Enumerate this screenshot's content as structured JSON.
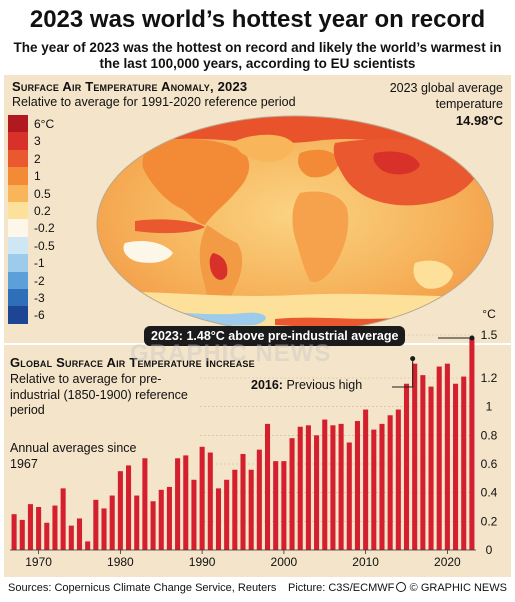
{
  "header": {
    "title": "2023 was world’s hottest year on record",
    "subtitle": "The year of 2023 was the hottest on record and likely the world’s warmest in the last 100,000 years, according to EU scientists"
  },
  "map": {
    "title": "Surface Air Temperature Anomaly, 2023",
    "subtitle": "Relative to average for 1991-2020 reference period",
    "global_avg_label": "2023 global average temperature",
    "global_avg_value": "14.98°C",
    "legend": [
      {
        "label": "6°C",
        "color": "#b0191f"
      },
      {
        "label": "3",
        "color": "#d8312a"
      },
      {
        "label": "2",
        "color": "#e9582e"
      },
      {
        "label": "1",
        "color": "#f28a36"
      },
      {
        "label": "0.5",
        "color": "#f8b55a"
      },
      {
        "label": "0.2",
        "color": "#fde19a"
      },
      {
        "label": "-0.2",
        "color": "#fdf7ea"
      },
      {
        "label": "-0.5",
        "color": "#cfe6f5"
      },
      {
        "label": "-1",
        "color": "#9ccbeb"
      },
      {
        "label": "-2",
        "color": "#5d9fd8"
      },
      {
        "label": "-3",
        "color": "#2f6fba"
      },
      {
        "label": "-6",
        "color": "#1c4594"
      }
    ]
  },
  "chart_data": {
    "type": "bar",
    "title": "Global Surface Air Temperature Increase",
    "subtitle": "Relative to average for pre-industrial (1850-1900) reference period",
    "note": "Annual averages since 1967",
    "unit": "°C",
    "ylim": [
      0,
      1.5
    ],
    "yticks": [
      0,
      0.2,
      0.4,
      0.6,
      0.8,
      1.0,
      1.2,
      1.5
    ],
    "ytick_labels": [
      "0",
      "0.2",
      "0.4",
      "0.6",
      "0.8",
      "1",
      "1.2",
      "1.5"
    ],
    "xticks": [
      1970,
      1980,
      1990,
      2000,
      2010,
      2020
    ],
    "years": [
      1967,
      1968,
      1969,
      1970,
      1971,
      1972,
      1973,
      1974,
      1975,
      1976,
      1977,
      1978,
      1979,
      1980,
      1981,
      1982,
      1983,
      1984,
      1985,
      1986,
      1987,
      1988,
      1989,
      1990,
      1991,
      1992,
      1993,
      1994,
      1995,
      1996,
      1997,
      1998,
      1999,
      2000,
      2001,
      2002,
      2003,
      2004,
      2005,
      2006,
      2007,
      2008,
      2009,
      2010,
      2011,
      2012,
      2013,
      2014,
      2015,
      2016,
      2017,
      2018,
      2019,
      2020,
      2021,
      2022,
      2023
    ],
    "values": [
      0.25,
      0.21,
      0.32,
      0.3,
      0.19,
      0.31,
      0.43,
      0.17,
      0.22,
      0.06,
      0.35,
      0.29,
      0.38,
      0.55,
      0.59,
      0.38,
      0.64,
      0.34,
      0.42,
      0.44,
      0.64,
      0.66,
      0.49,
      0.72,
      0.68,
      0.43,
      0.49,
      0.56,
      0.67,
      0.56,
      0.7,
      0.88,
      0.62,
      0.62,
      0.78,
      0.86,
      0.87,
      0.8,
      0.91,
      0.87,
      0.88,
      0.75,
      0.9,
      0.98,
      0.84,
      0.88,
      0.94,
      0.98,
      1.16,
      1.3,
      1.22,
      1.14,
      1.28,
      1.3,
      1.16,
      1.21,
      1.48
    ],
    "bar_color": "#d4202e",
    "annotations": [
      {
        "year": 2023,
        "label": "2023: 1.48°C above pre-industrial average"
      },
      {
        "year": 2016,
        "label_bold": "2016:",
        "label": "Previous high"
      }
    ]
  },
  "footer": {
    "sources": "Sources: Copernicus Climate Change Service, Reuters",
    "picture": "Picture: C3S/ECMWF",
    "credit": "© GRAPHIC NEWS"
  },
  "watermark": "GRAPHIC NEWS"
}
